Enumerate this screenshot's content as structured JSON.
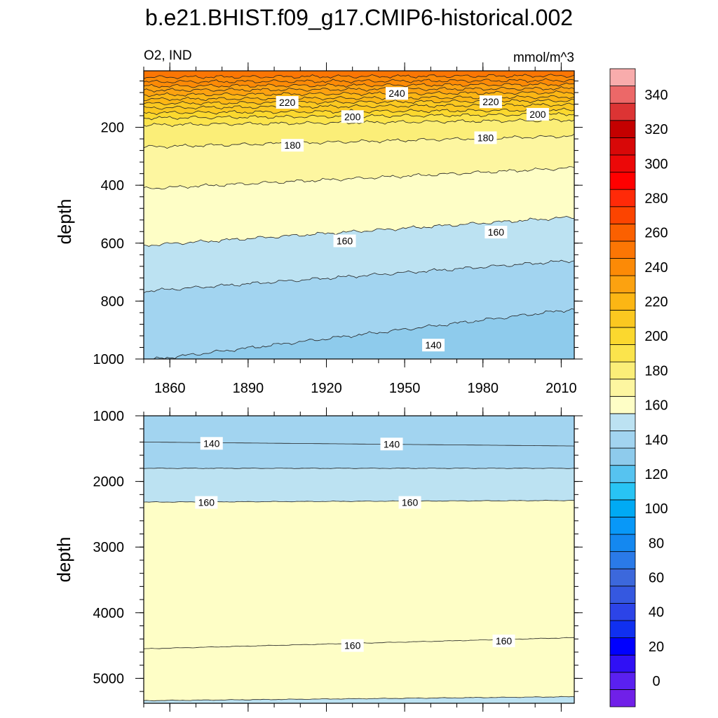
{
  "chart_data": {
    "type": "contour",
    "title": "b.e21.BHIST.f09_g17.CMIP6-historical.002",
    "variable_label": "O2, IND",
    "units_label": "mmol/m^3",
    "x_ticks": [
      1860,
      1890,
      1920,
      1950,
      1980,
      2010
    ],
    "xlim": [
      1850,
      2015
    ],
    "colorbar": {
      "levels": [
        0,
        20,
        40,
        60,
        80,
        100,
        120,
        140,
        160,
        180,
        200,
        220,
        240,
        260,
        280,
        300,
        320,
        340
      ],
      "tick_labels": [
        "0",
        "20",
        "40",
        "60",
        "80",
        "100",
        "120",
        "140",
        "160",
        "180",
        "200",
        "220",
        "240",
        "260",
        "280",
        "300",
        "320",
        "340"
      ],
      "colors": [
        "#7020e8",
        "#5a20f0",
        "#3010f5",
        "#0000ff",
        "#1030f0",
        "#2c44e8",
        "#3558e0",
        "#3c68dc",
        "#2a7ae8",
        "#1488f0",
        "#0898f8",
        "#00aaf4",
        "#28c4f4",
        "#56c3f0",
        "#8ecbec",
        "#a2d4f0",
        "#bce2f2",
        "#fefec6",
        "#fdf6a0",
        "#fbee78",
        "#fbe44c",
        "#fbd82e",
        "#fbc820",
        "#fcb614",
        "#fca210",
        "#fc8a06",
        "#fc7604",
        "#fb6000",
        "#fc4400",
        "#ff2a08",
        "#ff0000",
        "#ec0808",
        "#d80808",
        "#c40000",
        "#dc3434",
        "#ec6868",
        "#f8acac"
      ]
    },
    "panels": [
      {
        "ylabel": "depth",
        "y_ticks": [
          200,
          400,
          600,
          800,
          1000
        ],
        "ylim": [
          5,
          1000
        ],
        "y_reversed": true,
        "contours": [
          {
            "value": 250,
            "y": [
              5,
              5
            ]
          },
          {
            "value": 245,
            "y": [
              27,
              22
            ]
          },
          {
            "value": 240,
            "y": [
              43,
              38
            ]
          },
          {
            "value": 235,
            "y": [
              58,
              52
            ]
          },
          {
            "value": 230,
            "y": [
              72,
              66
            ]
          },
          {
            "value": 225,
            "y": [
              88,
              80
            ]
          },
          {
            "value": 220,
            "y": [
              103,
              95
            ]
          },
          {
            "value": 215,
            "y": [
              118,
              108
            ]
          },
          {
            "value": 210,
            "y": [
              133,
              122
            ]
          },
          {
            "value": 205,
            "y": [
              150,
              140
            ]
          },
          {
            "value": 200,
            "y": [
              168,
              155
            ]
          },
          {
            "value": 190,
            "y": [
              192,
              175
            ]
          },
          {
            "value": 180,
            "y": [
              268,
              230
            ]
          },
          {
            "value": 170,
            "y": [
              412,
              340
            ]
          },
          {
            "value": 160,
            "y": [
              608,
              510
            ]
          },
          {
            "value": 150,
            "y": [
              766,
              660
            ]
          },
          {
            "value": 140,
            "y": [
              1005,
              828
            ]
          }
        ],
        "labels": [
          {
            "text": "240",
            "x": 1947,
            "y": 83
          },
          {
            "text": "220",
            "x": 1905,
            "y": 114
          },
          {
            "text": "220",
            "x": 1983,
            "y": 112
          },
          {
            "text": "200",
            "x": 1930,
            "y": 163
          },
          {
            "text": "200",
            "x": 2001,
            "y": 155
          },
          {
            "text": "180",
            "x": 1907,
            "y": 262
          },
          {
            "text": "180",
            "x": 1981,
            "y": 236
          },
          {
            "text": "160",
            "x": 1927,
            "y": 592
          },
          {
            "text": "160",
            "x": 1985,
            "y": 562
          },
          {
            "text": "140",
            "x": 1961,
            "y": 952
          }
        ]
      },
      {
        "ylabel": "depth",
        "y_ticks": [
          1000,
          2000,
          3000,
          4000,
          5000
        ],
        "ylim": [
          1000,
          5380
        ],
        "y_reversed": true,
        "contours": [
          {
            "value": 140,
            "y": [
              1400,
              1460
            ]
          },
          {
            "value": 150,
            "y": [
              1800,
              1800
            ]
          },
          {
            "value": 160,
            "y": [
              2315,
              2290
            ]
          },
          {
            "value": 170,
            "y": [
              4550,
              4380
            ]
          },
          {
            "value": 160,
            "y": [
              5340,
              5280
            ]
          }
        ],
        "labels": [
          {
            "text": "140",
            "x": 1876,
            "y": 1420
          },
          {
            "text": "140",
            "x": 1945,
            "y": 1430
          },
          {
            "text": "160",
            "x": 1874,
            "y": 2320
          },
          {
            "text": "160",
            "x": 1952,
            "y": 2320
          },
          {
            "text": "160",
            "x": 1930,
            "y": 4500
          },
          {
            "text": "160",
            "x": 1988,
            "y": 4430
          }
        ]
      }
    ]
  }
}
